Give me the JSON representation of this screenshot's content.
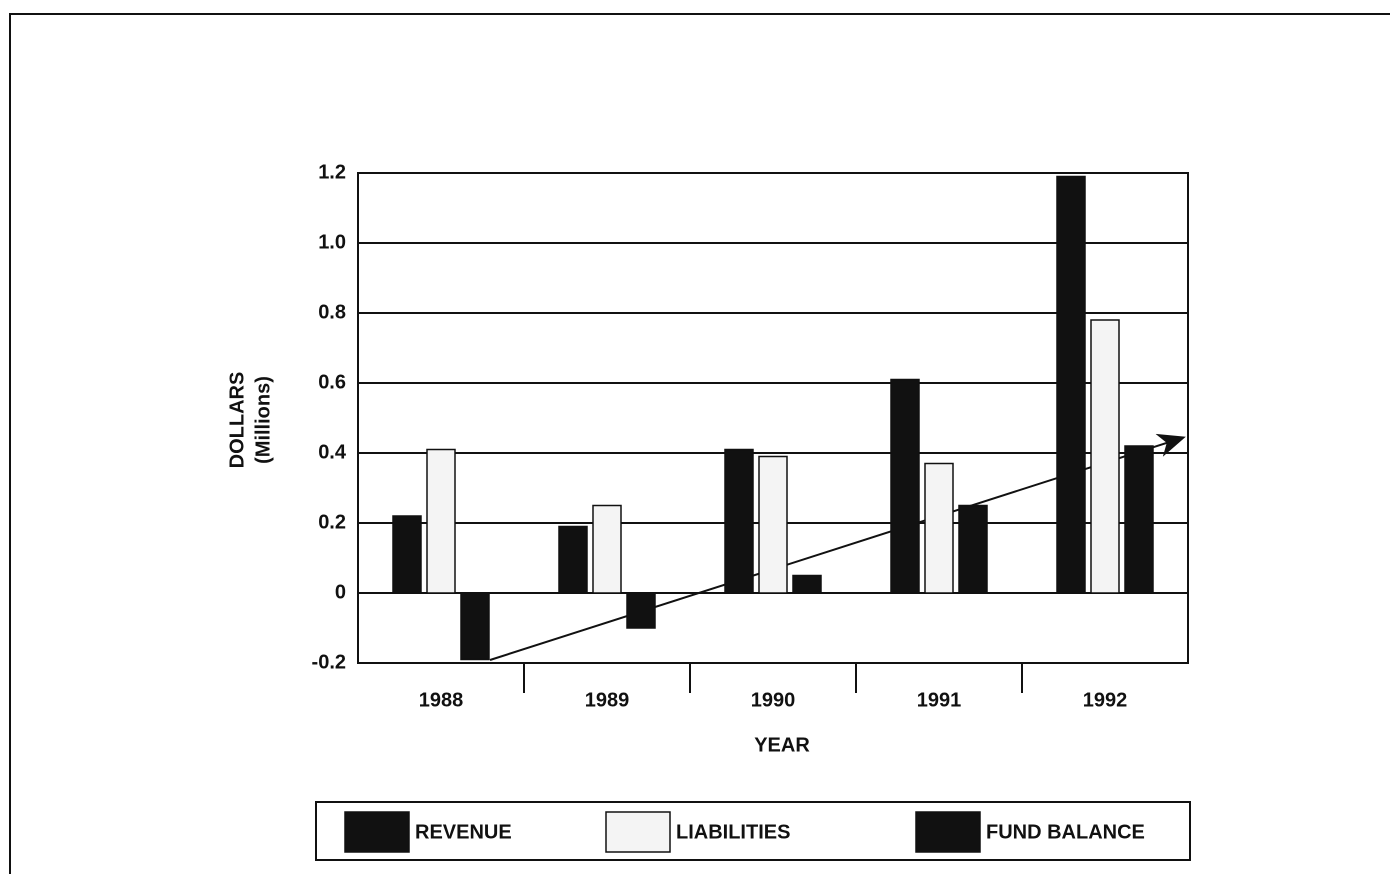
{
  "chart_data": {
    "type": "bar",
    "y_label": "DOLLARS",
    "y_label_sub": "(Millions)",
    "x_label": "YEAR",
    "categories": [
      "1988",
      "1989",
      "1990",
      "1991",
      "1992"
    ],
    "series": [
      {
        "name": "REVENUE",
        "color": "#111111",
        "values": [
          0.22,
          0.19,
          0.41,
          0.61,
          1.19
        ]
      },
      {
        "name": "LIABILITIES",
        "color": "#f4f4f4",
        "values": [
          0.41,
          0.25,
          0.39,
          0.37,
          0.78
        ]
      },
      {
        "name": "FUND BALANCE",
        "color": "#111111",
        "values": [
          -0.19,
          -0.1,
          0.05,
          0.25,
          0.42
        ]
      }
    ],
    "ylim": [
      -0.2,
      1.2
    ],
    "yticks": [
      -0.2,
      0,
      0.2,
      0.4,
      0.6,
      0.8,
      {
        "value": 1,
        "label": "1.0"
      },
      1.2
    ],
    "grid": true,
    "legend": "bottom"
  }
}
